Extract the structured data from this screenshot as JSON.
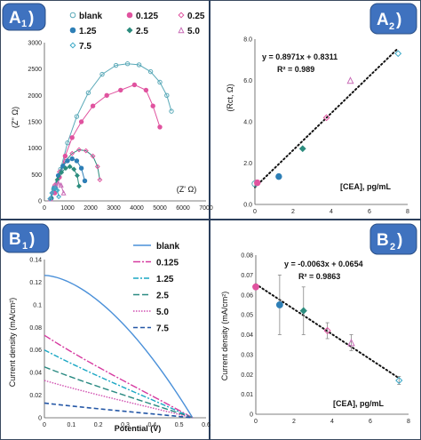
{
  "colors": {
    "blank": "#5aa9b8",
    "p0125": "#e0539f",
    "p125": "#2e7fb6",
    "p25": "#2c8c7e",
    "p5": "#c86bb6",
    "p75": "#3aa8c6",
    "badge": "#3f72bf",
    "fit": "#111111",
    "line_blank": "#4a90d9",
    "line_0125": "#d63aa0",
    "line_125": "#1aa7c4",
    "line_25": "#2a8a82",
    "line_5": "#d04fb0",
    "line_75": "#2457a6"
  },
  "badges": {
    "a1_letter": "A",
    "a1_sub": "1",
    "a2_letter": "A",
    "a2_sub": "2",
    "b1_letter": "B",
    "b1_sub": "1",
    "b2_letter": "B",
    "b2_sub": "2"
  },
  "chart_data": [
    {
      "id": "A1",
      "type": "scatter",
      "ylabel": "(Z'' Ω)",
      "xlabel": "(Z' Ω)",
      "xlim": [
        0,
        7000
      ],
      "ylim": [
        0,
        3000
      ],
      "xticks": [
        "0",
        "1000",
        "2000",
        "3000",
        "4000",
        "5000",
        "6000",
        "7000"
      ],
      "yticks": [
        "0",
        "500",
        "1000",
        "1500",
        "2000",
        "2500",
        "3000"
      ],
      "legend": [
        "blank",
        "0.125",
        "0.25",
        "1.25",
        "2.5",
        "5.0",
        "7.5"
      ],
      "series": [
        {
          "name": "blank",
          "x": [
            500,
            700,
            1000,
            1400,
            1900,
            2500,
            3100,
            3600,
            4100,
            4600,
            5000,
            5300,
            5500
          ],
          "y": [
            200,
            600,
            1100,
            1600,
            2050,
            2400,
            2570,
            2600,
            2580,
            2450,
            2250,
            2000,
            1700
          ]
        },
        {
          "name": "0.125",
          "x": [
            450,
            650,
            900,
            1200,
            1600,
            2100,
            2700,
            3300,
            3900,
            4400,
            4700,
            5000
          ],
          "y": [
            150,
            450,
            850,
            1200,
            1500,
            1800,
            2000,
            2100,
            2200,
            2100,
            1800,
            1400
          ]
        },
        {
          "name": "0.25",
          "x": [
            300,
            450,
            650,
            900,
            1200,
            1500,
            1800,
            2100,
            2300,
            2400
          ],
          "y": [
            50,
            300,
            550,
            750,
            900,
            970,
            950,
            850,
            650,
            400
          ]
        },
        {
          "name": "1.25",
          "x": [
            300,
            420,
            600,
            800,
            1000,
            1200,
            1400,
            1600,
            1750
          ],
          "y": [
            50,
            250,
            480,
            660,
            760,
            800,
            760,
            620,
            380
          ]
        },
        {
          "name": "2.5",
          "x": [
            280,
            400,
            560,
            740,
            920,
            1100,
            1280,
            1420,
            1500
          ],
          "y": [
            50,
            220,
            400,
            540,
            620,
            650,
            600,
            480,
            280
          ]
        },
        {
          "name": "5.0",
          "x": [
            260,
            360,
            480,
            600,
            720,
            830
          ],
          "y": [
            40,
            180,
            300,
            340,
            300,
            150
          ]
        },
        {
          "name": "7.5",
          "x": [
            240,
            320,
            400,
            480,
            560,
            620
          ],
          "y": [
            40,
            150,
            230,
            250,
            200,
            80
          ]
        }
      ]
    },
    {
      "id": "A2",
      "type": "scatter",
      "ylabel": "(Rct, Ω)",
      "xlabel": "[CEA], pg/mL",
      "xlim": [
        0,
        8
      ],
      "ylim": [
        0,
        8
      ],
      "xticks": [
        "0",
        "2",
        "4",
        "6",
        "8"
      ],
      "yticks": [
        "0.0",
        "2.0",
        "4.0",
        "6.0",
        "8.0"
      ],
      "equation": "y = 0.8971x + 0.8311",
      "r2": "R² = 0.989",
      "points": [
        {
          "x": 0.0,
          "y": 1.0,
          "series": "blank"
        },
        {
          "x": 0.125,
          "y": 1.05,
          "series": "0.125"
        },
        {
          "x": 1.25,
          "y": 1.35,
          "series": "1.25"
        },
        {
          "x": 2.5,
          "y": 2.7,
          "series": "2.5"
        },
        {
          "x": 3.75,
          "y": 4.2,
          "series": "0.25"
        },
        {
          "x": 5.0,
          "y": 6.0,
          "series": "5.0"
        },
        {
          "x": 7.5,
          "y": 7.3,
          "series": "7.5"
        }
      ],
      "fit": {
        "slope": 0.8971,
        "intercept": 0.8311
      }
    },
    {
      "id": "B1",
      "type": "line",
      "ylabel": "Current density (mA/cm²)",
      "xlabel": "Potential (V)",
      "xlim": [
        0,
        0.6
      ],
      "ylim": [
        0,
        0.14
      ],
      "xticks": [
        "0",
        "0.1",
        "0.2",
        "0.3",
        "0.4",
        "0.5",
        "0.6"
      ],
      "yticks": [
        "0",
        "0.02",
        "0.04",
        "0.06",
        "0.08",
        "0.1",
        "0.12",
        "0.14"
      ],
      "legend": [
        "blank",
        "0.125",
        "1.25",
        "2.5",
        "5.0",
        "7.5"
      ],
      "series": [
        {
          "name": "blank",
          "start": 0.126,
          "end_x": 0.55
        },
        {
          "name": "0.125",
          "start": 0.073,
          "end_x": 0.55
        },
        {
          "name": "1.25",
          "start": 0.06,
          "end_x": 0.55
        },
        {
          "name": "2.5",
          "start": 0.045,
          "end_x": 0.55
        },
        {
          "name": "5.0",
          "start": 0.033,
          "end_x": 0.55
        },
        {
          "name": "7.5",
          "start": 0.013,
          "end_x": 0.55
        }
      ]
    },
    {
      "id": "B2",
      "type": "scatter",
      "ylabel": "Current density (mA/cm²)",
      "xlabel": "[CEA], pg/mL",
      "xlim": [
        0,
        8
      ],
      "ylim": [
        0,
        0.08
      ],
      "xticks": [
        "0",
        "2",
        "4",
        "6",
        "8"
      ],
      "yticks": [
        "0",
        "0.01",
        "0.02",
        "0.03",
        "0.04",
        "0.05",
        "0.06",
        "0.07",
        "0.08"
      ],
      "equation": "y = -0.0063x + 0.0654",
      "r2": "R² = 0.9863",
      "points": [
        {
          "x": 0.0,
          "y": 0.064,
          "err": 0.001,
          "series": "0.125"
        },
        {
          "x": 1.25,
          "y": 0.055,
          "err": 0.015,
          "series": "1.25"
        },
        {
          "x": 2.5,
          "y": 0.052,
          "err": 0.012,
          "series": "2.5"
        },
        {
          "x": 3.75,
          "y": 0.042,
          "err": 0.004,
          "series": "0.25"
        },
        {
          "x": 5.0,
          "y": 0.036,
          "err": 0.004,
          "series": "5.0"
        },
        {
          "x": 7.5,
          "y": 0.017,
          "err": 0.002,
          "series": "7.5"
        }
      ],
      "fit": {
        "slope": -0.0063,
        "intercept": 0.0654
      }
    }
  ]
}
